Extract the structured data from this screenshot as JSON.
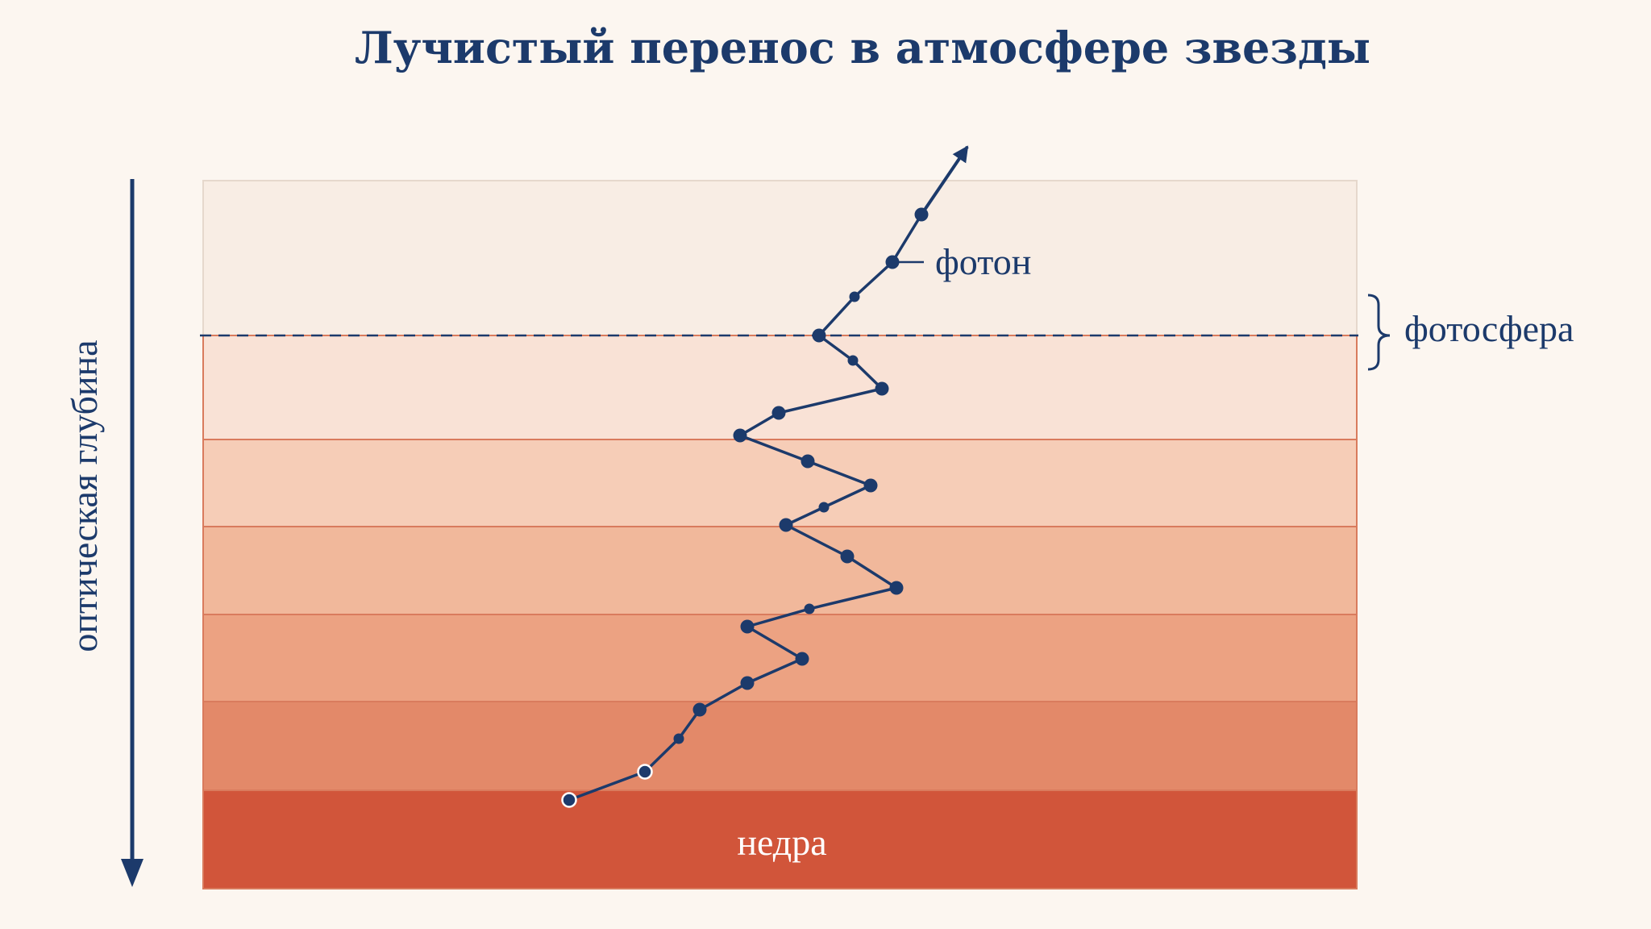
{
  "title": "Лучистый перенос в атмосфере звезды",
  "labels": {
    "photon": "фотон",
    "photosphere": "фотосфера",
    "core": "недра",
    "depth_axis": "оптическая глубина"
  },
  "layers": [
    {
      "name": "surface",
      "color": "#f8ede4"
    },
    {
      "name": "layer-1",
      "color": "#f9e2d6"
    },
    {
      "name": "layer-2",
      "color": "#f6cdb7"
    },
    {
      "name": "layer-3",
      "color": "#f1b89b"
    },
    {
      "name": "layer-4",
      "color": "#eca282"
    },
    {
      "name": "layer-5",
      "color": "#e38969"
    },
    {
      "name": "core",
      "color": "#d1553a"
    }
  ],
  "colors": {
    "ink": "#1c3a6b",
    "background": "#fcf6f0",
    "layer_edge": "#d97b5d"
  }
}
